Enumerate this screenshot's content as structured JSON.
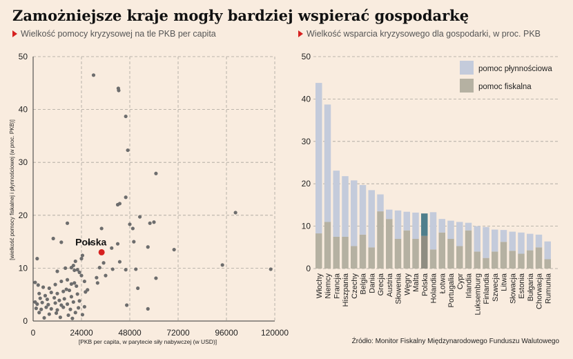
{
  "title": "Zamożniejsze kraje mogły bardziej wspierać gospodarkę",
  "source": "Źródło: Monitor Fiskalny Międzynarodowego Funduszu Walutowego",
  "colors": {
    "background": "#f9ecdf",
    "scatter_point": "#6d6d6d",
    "highlight_point": "#d6201f",
    "liquidity": "#c4cbdb",
    "fiscal": "#b5b1a2",
    "poland_liquidity": "#4f7f8c",
    "poland_fiscal": "#8f8d82",
    "accent": "#d6201f"
  },
  "chart_data": [
    {
      "type": "scatter",
      "subtitle": "Wielkość pomocy kryzysowej na tle PKB per capita",
      "xlabel": "[PKB per capita, w parytecie siły nabywczej (w USD)]",
      "ylabel": "[wielkość pomocy fiskalnej i płynnościowej (w proc. PKB)]",
      "xlim": [
        0,
        120000
      ],
      "ylim": [
        0,
        50
      ],
      "x_ticks": [
        0,
        24000,
        48000,
        72000,
        96000,
        120000
      ],
      "y_ticks": [
        0,
        10,
        20,
        30,
        40,
        50
      ],
      "x_tick_labels": [
        "0",
        "24000",
        "48000",
        "72000",
        "96000",
        "120000"
      ],
      "y_tick_labels": [
        "0",
        "10",
        "20",
        "30",
        "40",
        "50"
      ],
      "grid": true,
      "highlight": {
        "label": "Polska",
        "x": 34000,
        "y": 13
      },
      "points": [
        [
          42300,
          44
        ],
        [
          42500,
          43.6
        ],
        [
          30000,
          46.5
        ],
        [
          46000,
          38.7
        ],
        [
          47000,
          32.3
        ],
        [
          61000,
          27.9
        ],
        [
          46000,
          23.4
        ],
        [
          43000,
          22.2
        ],
        [
          42000,
          22
        ],
        [
          53000,
          19.7
        ],
        [
          58000,
          18.5
        ],
        [
          60000,
          18.7
        ],
        [
          48000,
          18.3
        ],
        [
          49500,
          17.5
        ],
        [
          100500,
          20.5
        ],
        [
          50000,
          15
        ],
        [
          42000,
          14.6
        ],
        [
          39000,
          13.8
        ],
        [
          57000,
          14
        ],
        [
          70000,
          13.5
        ],
        [
          35000,
          11
        ],
        [
          33000,
          10.1
        ],
        [
          43000,
          11.2
        ],
        [
          39500,
          9.8
        ],
        [
          51000,
          9.8
        ],
        [
          46000,
          9.7
        ],
        [
          36000,
          8.6
        ],
        [
          31500,
          8.2
        ],
        [
          25500,
          7.5
        ],
        [
          32000,
          7.2
        ],
        [
          61000,
          8.1
        ],
        [
          52000,
          6.2
        ],
        [
          26000,
          5.5
        ],
        [
          27000,
          5.9
        ],
        [
          46500,
          3
        ],
        [
          57000,
          2.3
        ],
        [
          94000,
          10.6
        ],
        [
          118000,
          9.8
        ],
        [
          34000,
          17.5
        ],
        [
          28000,
          14.7
        ],
        [
          24500,
          12.4
        ],
        [
          24000,
          11.8
        ],
        [
          17000,
          18.5
        ],
        [
          10000,
          15.6
        ],
        [
          14000,
          14.9
        ],
        [
          2000,
          11.8
        ],
        [
          20000,
          10.5
        ],
        [
          19000,
          10.1
        ],
        [
          21000,
          11.3
        ],
        [
          20500,
          9.6
        ],
        [
          16000,
          10
        ],
        [
          22000,
          9.7
        ],
        [
          23000,
          9.2
        ],
        [
          24000,
          8.6
        ],
        [
          12000,
          9.4
        ],
        [
          1000,
          7.3
        ],
        [
          2500,
          6.8
        ],
        [
          5000,
          6.4
        ],
        [
          8000,
          6.2
        ],
        [
          11000,
          6.9
        ],
        [
          14000,
          7.5
        ],
        [
          17000,
          7.8
        ],
        [
          19000,
          7
        ],
        [
          20500,
          7.2
        ],
        [
          16500,
          6
        ],
        [
          21500,
          6.6
        ],
        [
          3000,
          5.2
        ],
        [
          6000,
          4.8
        ],
        [
          9000,
          5.4
        ],
        [
          12000,
          5.2
        ],
        [
          15000,
          5.6
        ],
        [
          18000,
          5.8
        ],
        [
          22000,
          5.1
        ],
        [
          3500,
          4.3
        ],
        [
          7000,
          4.1
        ],
        [
          10500,
          4.4
        ],
        [
          13000,
          3.9
        ],
        [
          15500,
          4.2
        ],
        [
          19000,
          4.6
        ],
        [
          1000,
          3.6
        ],
        [
          2000,
          3.2
        ],
        [
          4500,
          3.5
        ],
        [
          7500,
          3.1
        ],
        [
          11000,
          3.4
        ],
        [
          14000,
          3
        ],
        [
          17000,
          3.2
        ],
        [
          20000,
          3.6
        ],
        [
          23000,
          3.8
        ],
        [
          1500,
          2.4
        ],
        [
          4000,
          2.2
        ],
        [
          6500,
          2.6
        ],
        [
          9000,
          2.3
        ],
        [
          12000,
          2.1
        ],
        [
          15000,
          2.6
        ],
        [
          18500,
          2.2
        ],
        [
          22500,
          2.5
        ],
        [
          25500,
          2.7
        ],
        [
          3000,
          1.6
        ],
        [
          8000,
          1.3
        ],
        [
          11500,
          1.5
        ],
        [
          17500,
          1.1
        ],
        [
          21000,
          1.6
        ],
        [
          24500,
          1.2
        ],
        [
          5500,
          0.6
        ],
        [
          13500,
          0.7
        ],
        [
          19500,
          0.5
        ]
      ]
    },
    {
      "type": "bar",
      "stacked": true,
      "subtitle": "Wielkość wsparcia kryzysowego dla gospodarki, w proc. PKB",
      "ylim": [
        0,
        50
      ],
      "y_ticks": [
        0,
        10,
        20,
        30,
        40,
        50
      ],
      "y_tick_labels": [
        "0",
        "10",
        "20",
        "30",
        "40",
        "50"
      ],
      "grid": true,
      "legend_position": "top-right",
      "highlight_category": "Polska",
      "categories": [
        "Włochy",
        "Niemcy",
        "Francja",
        "Hiszpania",
        "Czechy",
        "Belgia",
        "Dania",
        "Grecja",
        "Austria",
        "Słowenia",
        "Węgry",
        "Malta",
        "Polska",
        "Holandia",
        "Łotwa",
        "Portugalia",
        "Cypr",
        "Irlandia",
        "Luksemburg",
        "Finlandia",
        "Szwecja",
        "Litwa",
        "Słowacja",
        "Estonia",
        "Bułgaria",
        "Chorwacja",
        "Rumunia"
      ],
      "series": [
        {
          "name": "pomoc fiskalna",
          "values": [
            8.3,
            11,
            7.5,
            7.5,
            5.3,
            8,
            5,
            13.5,
            11.7,
            7,
            9,
            7,
            7.7,
            4.5,
            8.5,
            7,
            5.3,
            9,
            4,
            2.5,
            4,
            6.3,
            4.2,
            3.5,
            4.3,
            5,
            2.2
          ]
        },
        {
          "name": "pomoc płynnościowa",
          "values": [
            35.5,
            27.7,
            15.6,
            14.3,
            15.5,
            11.7,
            13.5,
            4,
            2.2,
            6.7,
            4.4,
            6.2,
            5.3,
            8.8,
            3.2,
            4.3,
            5.7,
            1.8,
            6,
            7.3,
            5.2,
            2.8,
            4.5,
            5,
            3.9,
            3,
            4.2
          ]
        }
      ]
    }
  ]
}
